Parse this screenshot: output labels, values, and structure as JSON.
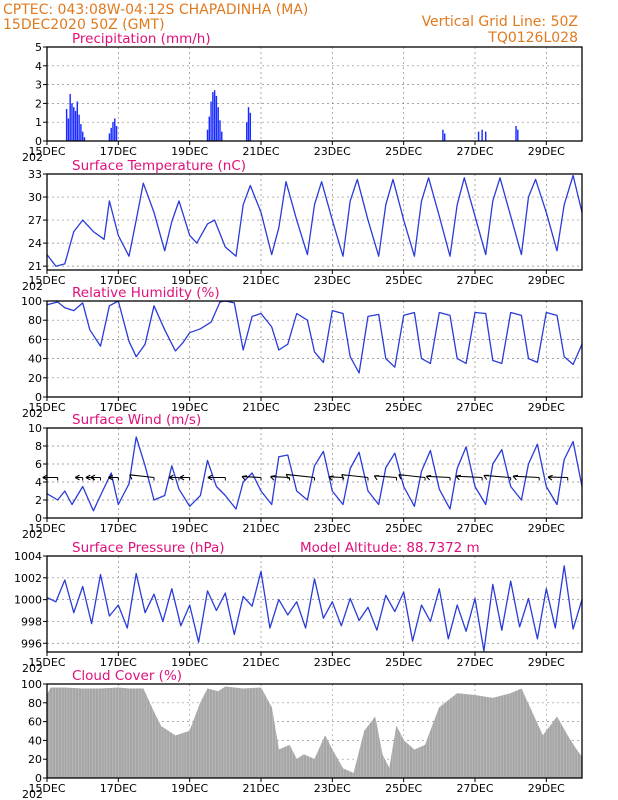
{
  "header": {
    "line1": "CPTEC:    043:08W-04:12S    CHAPADINHA (MA)",
    "line2": "15DEC2020 50Z (GMT)",
    "right1": "Vertical Grid Line: 50Z",
    "right2": "TQ0126L028",
    "text_color": "#e07a1f",
    "title_color": "#e0107a"
  },
  "x_axis": {
    "ticks": [
      "15DEC",
      "17DEC",
      "19DEC",
      "21DEC",
      "23DEC",
      "25DEC",
      "27DEC",
      "29DEC"
    ],
    "overlap_label": "202"
  },
  "chart_data": [
    {
      "id": "precip",
      "type": "bar",
      "title": "Precipitation (mm/h)",
      "ylim": [
        0,
        5
      ],
      "yticks": [
        0,
        1,
        2,
        3,
        4,
        5
      ],
      "color": "#1a2bff",
      "bars": [
        {
          "day": 0.55,
          "value": 1.7
        },
        {
          "day": 0.6,
          "value": 1.2
        },
        {
          "day": 0.65,
          "value": 2.5
        },
        {
          "day": 0.7,
          "value": 2.0
        },
        {
          "day": 0.75,
          "value": 1.8
        },
        {
          "day": 0.8,
          "value": 1.6
        },
        {
          "day": 0.85,
          "value": 2.1
        },
        {
          "day": 0.9,
          "value": 1.4
        },
        {
          "day": 0.95,
          "value": 0.9
        },
        {
          "day": 1.0,
          "value": 0.5
        },
        {
          "day": 1.05,
          "value": 0.2
        },
        {
          "day": 1.75,
          "value": 0.4
        },
        {
          "day": 1.8,
          "value": 0.7
        },
        {
          "day": 1.85,
          "value": 1.0
        },
        {
          "day": 1.9,
          "value": 1.2
        },
        {
          "day": 1.95,
          "value": 0.8
        },
        {
          "day": 4.5,
          "value": 0.6
        },
        {
          "day": 4.55,
          "value": 1.3
        },
        {
          "day": 4.6,
          "value": 2.1
        },
        {
          "day": 4.65,
          "value": 2.6
        },
        {
          "day": 4.7,
          "value": 2.7
        },
        {
          "day": 4.75,
          "value": 2.4
        },
        {
          "day": 4.8,
          "value": 1.8
        },
        {
          "day": 4.85,
          "value": 1.1
        },
        {
          "day": 4.9,
          "value": 0.5
        },
        {
          "day": 5.6,
          "value": 1.0
        },
        {
          "day": 5.65,
          "value": 1.8
        },
        {
          "day": 5.7,
          "value": 1.5
        },
        {
          "day": 11.1,
          "value": 0.6
        },
        {
          "day": 11.15,
          "value": 0.4
        },
        {
          "day": 12.1,
          "value": 0.5
        },
        {
          "day": 12.2,
          "value": 0.6
        },
        {
          "day": 12.3,
          "value": 0.5
        },
        {
          "day": 13.15,
          "value": 0.8
        },
        {
          "day": 13.2,
          "value": 0.6
        }
      ]
    },
    {
      "id": "temp",
      "type": "line",
      "title": "Surface Temperature (nC)",
      "ylim": [
        20.5,
        33
      ],
      "yticks": [
        21,
        24,
        27,
        30,
        33
      ],
      "color": "#2a3bd8",
      "x": [
        0,
        0.25,
        0.5,
        0.75,
        1,
        1.3,
        1.6,
        1.75,
        2,
        2.3,
        2.5,
        2.7,
        3,
        3.3,
        3.5,
        3.7,
        4,
        4.2,
        4.5,
        4.7,
        5,
        5.3,
        5.5,
        5.7,
        6,
        6.3,
        6.5,
        6.7,
        7,
        7.3,
        7.5,
        7.7,
        8,
        8.3,
        8.5,
        8.7,
        9,
        9.3,
        9.5,
        9.7,
        10,
        10.3,
        10.5,
        10.7,
        11,
        11.3,
        11.5,
        11.7,
        12,
        12.3,
        12.5,
        12.7,
        13,
        13.3,
        13.5,
        13.7,
        14,
        14.3,
        14.5,
        14.75,
        15
      ],
      "y": [
        22.5,
        21,
        21.3,
        25.5,
        27,
        25.5,
        24.5,
        29.5,
        25,
        22.3,
        27,
        31.8,
        28,
        23,
        26.8,
        29.5,
        25,
        24,
        26.5,
        27,
        23.5,
        22.3,
        29,
        31.5,
        28,
        22.5,
        26,
        32,
        27,
        22.5,
        29,
        32,
        27,
        22.3,
        29.5,
        32.3,
        27,
        22.3,
        29,
        32.3,
        27,
        22.3,
        29.5,
        32.5,
        27.5,
        22.3,
        29,
        32.5,
        27.5,
        22.5,
        29.5,
        32.5,
        27.5,
        22.5,
        30,
        32.3,
        28,
        23,
        29,
        32.8,
        28
      ]
    },
    {
      "id": "rh",
      "type": "line",
      "title": "Relative Humidity (%)",
      "ylim": [
        0,
        100
      ],
      "yticks": [
        0,
        20,
        40,
        60,
        80,
        100
      ],
      "color": "#2a3bd8",
      "x": [
        0,
        0.3,
        0.5,
        0.75,
        1,
        1.2,
        1.5,
        1.75,
        2,
        2.3,
        2.5,
        2.75,
        3,
        3.3,
        3.6,
        3.8,
        4,
        4.3,
        4.6,
        4.85,
        5,
        5.25,
        5.5,
        5.75,
        6,
        6.3,
        6.5,
        6.75,
        7,
        7.3,
        7.5,
        7.75,
        8,
        8.3,
        8.5,
        8.75,
        9,
        9.3,
        9.5,
        9.75,
        10,
        10.3,
        10.5,
        10.75,
        11,
        11.3,
        11.5,
        11.75,
        12,
        12.3,
        12.5,
        12.75,
        13,
        13.3,
        13.5,
        13.75,
        14,
        14.3,
        14.5,
        14.75,
        15
      ],
      "y": [
        96,
        99,
        93,
        90,
        98,
        70,
        53,
        95,
        100,
        58,
        42,
        55,
        95,
        70,
        48,
        56,
        67,
        71,
        78,
        99,
        100,
        98,
        49,
        84,
        87,
        73,
        49,
        55,
        87,
        80,
        47,
        36,
        90,
        87,
        42,
        25,
        84,
        86,
        40,
        31,
        85,
        88,
        40,
        35,
        88,
        85,
        40,
        35,
        88,
        87,
        38,
        35,
        88,
        85,
        40,
        36,
        88,
        85,
        42,
        34,
        55
      ]
    },
    {
      "id": "wind",
      "type": "line",
      "title": "Surface Wind (m/s)",
      "ylim": [
        0,
        10
      ],
      "yticks": [
        0,
        2,
        4,
        6,
        8,
        10
      ],
      "color": "#2a3bd8",
      "x": [
        0,
        0.3,
        0.5,
        0.7,
        1,
        1.3,
        1.5,
        1.8,
        2,
        2.3,
        2.5,
        2.75,
        3,
        3.3,
        3.5,
        3.7,
        4,
        4.3,
        4.5,
        4.75,
        5,
        5.3,
        5.5,
        5.75,
        6,
        6.3,
        6.5,
        6.75,
        7,
        7.3,
        7.5,
        7.75,
        8,
        8.3,
        8.5,
        8.75,
        9,
        9.3,
        9.5,
        9.75,
        10,
        10.3,
        10.5,
        10.75,
        11,
        11.3,
        11.5,
        11.75,
        12,
        12.3,
        12.5,
        12.75,
        13,
        13.3,
        13.5,
        13.75,
        14,
        14.3,
        14.5,
        14.75,
        15
      ],
      "y": [
        2.7,
        2,
        3,
        1.5,
        3.5,
        0.8,
        2.5,
        5,
        1.5,
        3.8,
        9,
        5.8,
        2,
        2.5,
        5.8,
        3.2,
        1.3,
        2.5,
        6.4,
        3.5,
        2.5,
        1,
        4,
        5,
        3,
        1.5,
        6.8,
        7,
        3,
        2,
        5.8,
        7.4,
        3,
        1.5,
        5.5,
        7.3,
        3,
        1.5,
        5.6,
        7.2,
        3.5,
        1.3,
        5.2,
        7.5,
        3.2,
        1,
        5.5,
        7.9,
        3.5,
        1.5,
        6,
        7.6,
        3.5,
        2,
        6,
        8.2,
        3.5,
        1.5,
        6.5,
        8.5,
        3.5
      ],
      "barbs": [
        {
          "day": 0.3,
          "dir": 1,
          "len": 3
        },
        {
          "day": 1.0,
          "dir": 1,
          "len": 1.5
        },
        {
          "day": 1.3,
          "dir": 1,
          "len": 1.5
        },
        {
          "day": 1.5,
          "dir": 1,
          "len": 2
        },
        {
          "day": 2.0,
          "dir": 1,
          "len": 2
        },
        {
          "day": 3.0,
          "dir": 0.8,
          "len": 6
        },
        {
          "day": 3.7,
          "dir": 1,
          "len": 2
        },
        {
          "day": 4.0,
          "dir": 1,
          "len": 2
        },
        {
          "day": 5.0,
          "dir": 1,
          "len": 3.5
        },
        {
          "day": 6.0,
          "dir": 0.9,
          "len": 4
        },
        {
          "day": 6.8,
          "dir": 0.9,
          "len": 4
        },
        {
          "day": 7.5,
          "dir": 0.8,
          "len": 7
        },
        {
          "day": 8.3,
          "dir": 0.9,
          "len": 3
        },
        {
          "day": 9.0,
          "dir": 0.8,
          "len": 6.5
        },
        {
          "day": 9.8,
          "dir": 0.85,
          "len": 5
        },
        {
          "day": 10.6,
          "dir": 0.8,
          "len": 6.5
        },
        {
          "day": 11.3,
          "dir": 0.9,
          "len": 5
        },
        {
          "day": 12.2,
          "dir": 0.9,
          "len": 5.5
        },
        {
          "day": 13.0,
          "dir": 0.85,
          "len": 6
        },
        {
          "day": 13.8,
          "dir": 0.9,
          "len": 5.5
        },
        {
          "day": 14.6,
          "dir": 0.95,
          "len": 4
        }
      ]
    },
    {
      "id": "press",
      "type": "line",
      "title": "Surface Pressure (hPa)",
      "extra_label": "Model Altitude: 88.7372  m",
      "ylim": [
        995.2,
        1004
      ],
      "yticks": [
        996,
        998,
        1000,
        1002,
        1004
      ],
      "color": "#2a3bd8",
      "x": [
        0,
        0.25,
        0.5,
        0.75,
        1,
        1.25,
        1.5,
        1.75,
        2,
        2.25,
        2.5,
        2.75,
        3,
        3.25,
        3.5,
        3.75,
        4,
        4.25,
        4.5,
        4.75,
        5,
        5.25,
        5.5,
        5.75,
        6,
        6.25,
        6.5,
        6.75,
        7,
        7.25,
        7.5,
        7.75,
        8,
        8.25,
        8.5,
        8.75,
        9,
        9.25,
        9.5,
        9.75,
        10,
        10.25,
        10.5,
        10.75,
        11,
        11.25,
        11.5,
        11.75,
        12,
        12.25,
        12.5,
        12.75,
        13,
        13.25,
        13.5,
        13.75,
        14,
        14.25,
        14.5,
        14.75,
        15
      ],
      "y": [
        1000.2,
        999.8,
        1001.8,
        998.8,
        1001.2,
        997.8,
        1002.3,
        998.5,
        999.5,
        997.4,
        1002.4,
        998.8,
        1000.5,
        998,
        1001,
        997.6,
        999.5,
        996.1,
        1000.8,
        999,
        1000.6,
        996.8,
        1000.3,
        999.4,
        1002.6,
        997.4,
        1000,
        998.6,
        999.8,
        997.4,
        1001.9,
        998.3,
        999.8,
        997.6,
        1000.1,
        998.1,
        999.3,
        997.2,
        1000.4,
        998.9,
        1000.7,
        996.2,
        999.5,
        998,
        1001,
        996.4,
        999.5,
        997.1,
        1000.1,
        995.3,
        1001.4,
        997.2,
        1001.7,
        997.5,
        1000.1,
        996.4,
        1001,
        997.4,
        1003.1,
        997.3,
        1000
      ]
    },
    {
      "id": "cloud",
      "type": "area",
      "title": "Cloud Cover (%)",
      "ylim": [
        0,
        100
      ],
      "yticks": [
        0,
        20,
        40,
        60,
        80,
        100
      ],
      "color": "#a6a6a6",
      "x": [
        0,
        0.1,
        0.5,
        1,
        1.5,
        2,
        2.3,
        2.7,
        3,
        3.2,
        3.6,
        4,
        4.3,
        4.5,
        4.8,
        5,
        5.5,
        6,
        6.3,
        6.5,
        6.8,
        7,
        7.2,
        7.5,
        7.8,
        8,
        8.3,
        8.6,
        8.9,
        9.2,
        9.4,
        9.6,
        9.8,
        10,
        10.3,
        10.6,
        11,
        11.5,
        12,
        12.5,
        13,
        13.3,
        13.6,
        13.9,
        14.1,
        14.3,
        14.6,
        14.85,
        15
      ],
      "y": [
        88,
        96,
        96,
        95,
        95,
        96,
        95,
        95,
        70,
        55,
        45,
        50,
        80,
        95,
        92,
        97,
        95,
        96,
        75,
        30,
        35,
        20,
        25,
        20,
        45,
        30,
        10,
        5,
        50,
        65,
        25,
        10,
        55,
        40,
        30,
        35,
        75,
        90,
        88,
        85,
        90,
        95,
        70,
        45,
        55,
        65,
        45,
        30,
        22
      ]
    }
  ]
}
